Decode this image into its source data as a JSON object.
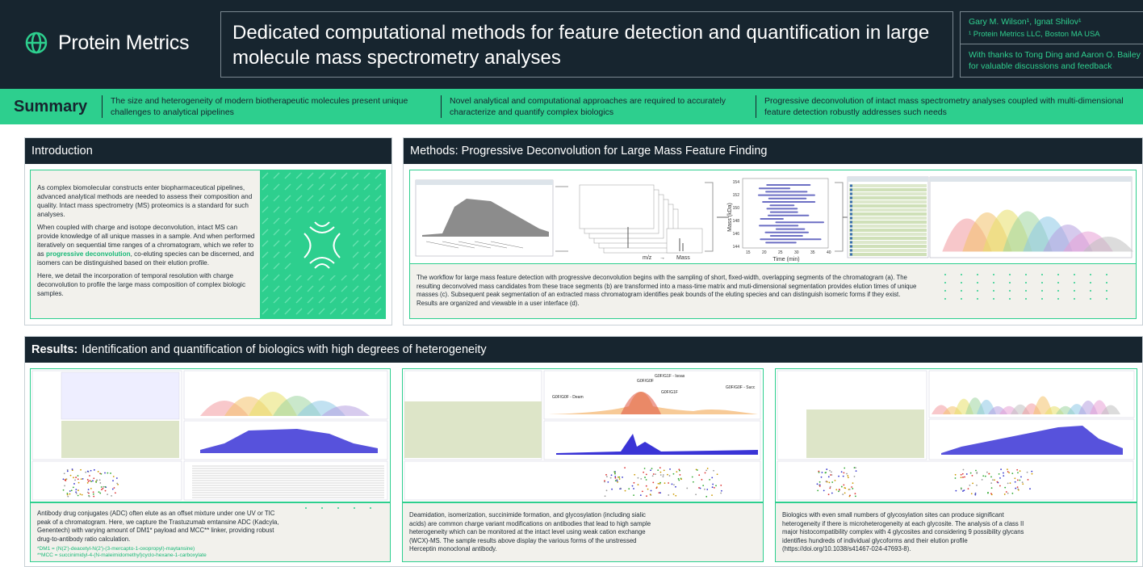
{
  "header": {
    "logo_text": "Protein Metrics",
    "title": "Dedicated computational methods for feature detection and quantification in large molecule mass spectrometry analyses",
    "authors": "Gary M. Wilson¹, Ignat Shilov¹",
    "affiliation": "¹ Protein Metrics LLC, Boston MA USA",
    "thanks": "With thanks to Tong Ding and Aaron O. Bailey for valuable discussions and feedback"
  },
  "summary": {
    "label": "Summary",
    "col1": "The size and heterogeneity of modern biotherapeutic molecules present unique challenges to analytical pipelines",
    "col2": "Novel analytical and computational approaches are required to accurately characterize and quantify complex biologics",
    "col3": "Progressive deconvolution of intact mass spectrometry analyses coupled with multi-dimensional feature detection robustly addresses such needs"
  },
  "introduction": {
    "title": "Introduction",
    "p1": "As complex biomolecular constructs enter biopharmaceutical pipelines, advanced analytical methods are needed to assess their composition and quality. Intact mass spectrometry (MS) proteomics is a standard for such analyses.",
    "p2a": "When coupled with charge and isotope deconvolution, intact MS can provide knowledge of all unique masses in a sample. And when performed iteratively on sequential time ranges of a chromatogram, which we refer to as ",
    "p2_highlight": "progressive deconvolution",
    "p2b": ", co-eluting species can be discerned, and isomers can be distinguished based on their elution profile.",
    "p3": "Here, we detail the incorporation of temporal resolution with charge deconvolution to profile the large mass composition of complex biologic samples."
  },
  "methods": {
    "title": "Methods: Progressive Deconvolution for Large Mass Feature Finding",
    "fig_label_mz": "m/z",
    "fig_arrow": "→",
    "fig_label_mass": "Mass",
    "fig_yaxis": "Mass (kDa)",
    "fig_xaxis": "Time (min)",
    "y_ticks": [
      "154",
      "152",
      "150",
      "148",
      "146",
      "144"
    ],
    "x_ticks": [
      "15",
      "20",
      "25",
      "30",
      "35",
      "40"
    ],
    "text": "The workflow for large mass feature detection with progressive deconvolution begins with the sampling of short, fixed-width, overlapping segments of the chromatogram (a). The resulting deconvolved mass candidates from these trace segments (b) are transformed into a mass-time matrix and muti-dimensional segmentation provides elution times of unique masses (c). Subsequent peak segmentation of an extracted mass chromatogram identifies peak bounds of the eluting species and can distinguish isomeric forms if they exist. Results are organized and viewable in a user interface (d)."
  },
  "results": {
    "title_bold": "Results:",
    "title_rest": "Identification and quantification of biologics with high degrees of heterogeneity",
    "panel1_text": "Antibody drug conjugates (ADC) often elute as an offset mixture under one UV or TIC peak of a chromatogram. Here, we capture the Trastuzumab emtansine ADC (Kadcyla, Genentech) with varying amount of DM1* payload and MCC** linker, providing robust drug-to-antibody ratio calculation.",
    "panel1_note1": "*DM1 = (N(2ʹ)-deacetyl-N(2ʹ)-(3-mercapto-1-oxopropyl)-maytansine)",
    "panel1_note2": "**MCC = succinimidyl-4-(N-maleimidomethyl)cyclo-hexane-1-carboxylate",
    "panel2_text": "Deamidation, isomerization, succinimide formation, and glycosylation (including sialic acids) are common charge variant modifications on antibodies that lead to high sample heterogeneity which can be monitored at the intact level using weak cation exchange (WCX)-MS. The sample results above display the various forms of the unstressed Herceptin monoclonal antibody.",
    "panel3_text": "Biologics with even small numbers of glycosylation sites can produce significant heterogeneity if there is microheterogeneity at each glycosite. The analysis of a class II major histocompatibility complex with 4 glycosites and considering 9 possibility glycans identifies hundreds of individual glycoforms and their elution profile (https://doi.org/10.1038/s41467-024-47693-8).",
    "panel2_labels": [
      "G0F/G0F",
      "G0F/G1F",
      "G0F/G0F - Deam",
      "G0F/G1F - Isoas",
      "G0F/G0F - Succ"
    ]
  },
  "colors": {
    "navy": "#17252f",
    "green": "#2dcf8e",
    "cream": "#f2f1ec"
  }
}
